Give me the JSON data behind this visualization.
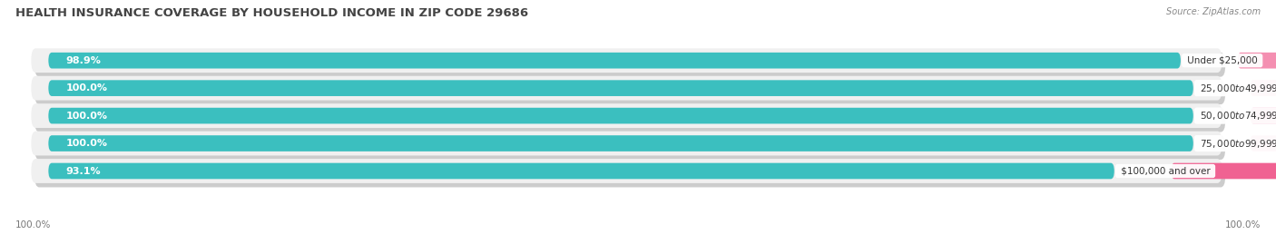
{
  "title": "HEALTH INSURANCE COVERAGE BY HOUSEHOLD INCOME IN ZIP CODE 29686",
  "source": "Source: ZipAtlas.com",
  "categories": [
    "Under $25,000",
    "$25,000 to $49,999",
    "$50,000 to $74,999",
    "$75,000 to $99,999",
    "$100,000 and over"
  ],
  "with_coverage": [
    98.9,
    100.0,
    100.0,
    100.0,
    93.1
  ],
  "without_coverage": [
    1.1,
    0.0,
    0.0,
    0.0,
    6.9
  ],
  "color_with": "#3BBFBF",
  "color_without": "#F48FB1",
  "color_without_last": "#F06292",
  "title_fontsize": 9.5,
  "label_fontsize": 8,
  "source_fontsize": 7,
  "tick_fontsize": 7.5,
  "bg_color": "#FFFFFF",
  "row_bg": "#EFEFEF",
  "left_tick_label": "100.0%",
  "right_tick_label": "100.0%"
}
